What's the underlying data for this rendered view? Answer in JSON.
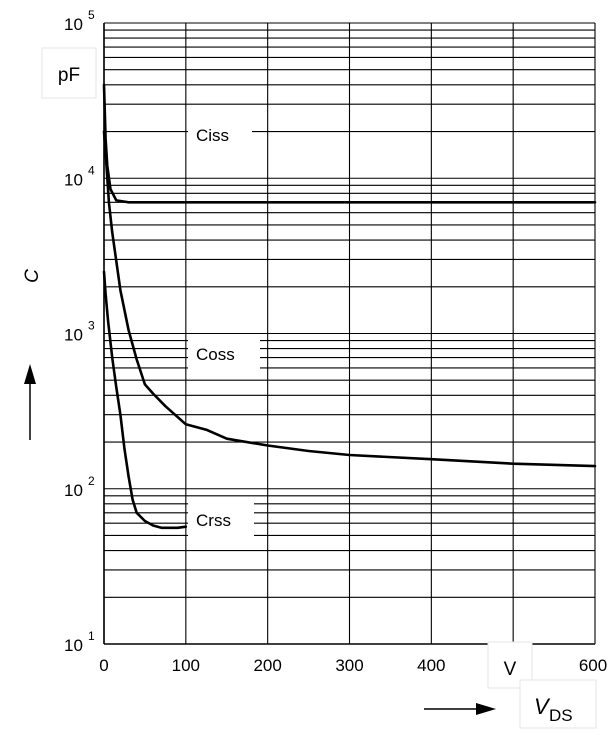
{
  "chart_data": {
    "type": "line",
    "x_scale": "linear",
    "y_scale": "log",
    "xlim": [
      0,
      600
    ],
    "ylim": [
      10,
      100000
    ],
    "x_ticks": [
      0,
      100,
      200,
      300,
      400,
      500,
      600
    ],
    "x_tick_labels": [
      "0",
      "100",
      "200",
      "300",
      "400",
      "",
      "600"
    ],
    "x_unit": "V",
    "y_ticks": [
      {
        "base": "10",
        "exp": "1",
        "value": 10
      },
      {
        "base": "10",
        "exp": "2",
        "value": 100
      },
      {
        "base": "10",
        "exp": "3",
        "value": 1000
      },
      {
        "base": "10",
        "exp": "4",
        "value": 10000
      },
      {
        "base": "10",
        "exp": "5",
        "value": 100000
      }
    ],
    "y_unit": "pF",
    "ylabel": "C",
    "xlabel_main": "V",
    "xlabel_sub": "DS",
    "grid": true,
    "series": [
      {
        "name": "Ciss",
        "x": [
          0,
          2,
          4,
          8,
          15,
          30,
          100,
          200,
          300,
          400,
          500,
          600
        ],
        "y": [
          40000,
          18000,
          12000,
          8500,
          7200,
          7000,
          7000,
          7000,
          7000,
          7000,
          7000,
          7000
        ]
      },
      {
        "name": "Coss",
        "x": [
          0,
          3,
          6,
          10,
          20,
          30,
          40,
          50,
          60,
          75,
          100,
          125,
          150,
          200,
          250,
          300,
          400,
          500,
          600
        ],
        "y": [
          20000,
          12000,
          7000,
          4500,
          1900,
          1050,
          680,
          470,
          410,
          340,
          260,
          240,
          210,
          190,
          175,
          165,
          155,
          145,
          140
        ]
      },
      {
        "name": "Crss",
        "x": [
          0,
          2,
          5,
          10,
          15,
          20,
          25,
          30,
          35,
          40,
          50,
          60,
          70,
          80,
          90,
          100
        ],
        "y": [
          2500,
          1800,
          1200,
          700,
          450,
          300,
          180,
          120,
          85,
          70,
          62,
          58,
          56,
          56,
          56,
          57
        ]
      }
    ],
    "annotations": {
      "ciss": "Ciss",
      "coss": "Coss",
      "crss": "Crss"
    }
  }
}
